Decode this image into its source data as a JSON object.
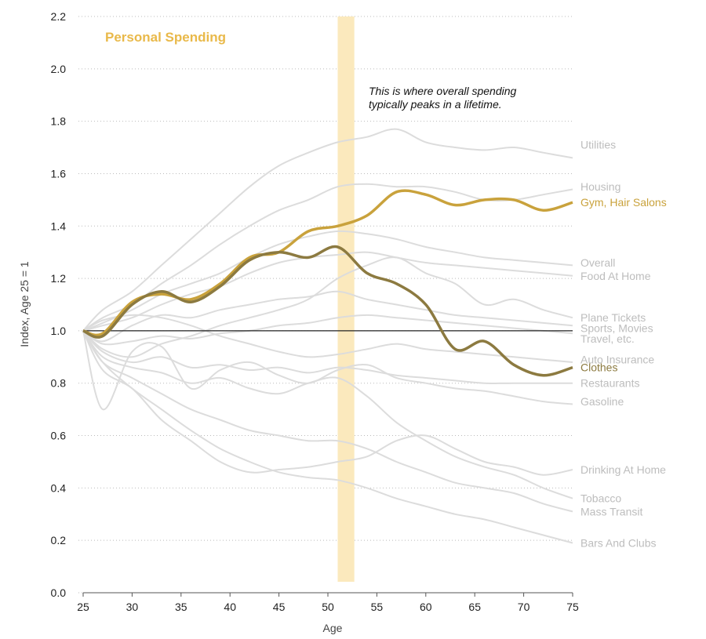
{
  "colors": {
    "background_series": "#dcdcdc",
    "background_label": "#bdbdbd",
    "highlight_gold": "#c9a23c",
    "highlight_dark": "#8c7a40",
    "title": "#e9b94a",
    "band": "#fbe9bd",
    "baseline": "#222222"
  },
  "chart_data": {
    "type": "line",
    "title": "Personal Spending",
    "xlabel": "Age",
    "ylabel": "Index, Age 25 = 1",
    "xlim": [
      25,
      75
    ],
    "ylim": [
      0,
      2.2
    ],
    "xticks": [
      25,
      30,
      35,
      40,
      45,
      50,
      55,
      60,
      65,
      70,
      75
    ],
    "yticks": [
      "0.0",
      "0.2",
      "0.4",
      "0.6",
      "0.8",
      "1.0",
      "1.2",
      "1.4",
      "1.6",
      "1.8",
      "2.0",
      "2.2"
    ],
    "grid": true,
    "baseline": 1.0,
    "peak_band": [
      51,
      52.7
    ],
    "annotation": {
      "lines": [
        "This is where overall spending",
        "typically peaks in a lifetime."
      ],
      "x": 54,
      "y": 1.9
    },
    "x": [
      25,
      27,
      30,
      33,
      36,
      39,
      42,
      45,
      48,
      51,
      54,
      57,
      60,
      63,
      66,
      69,
      72,
      75
    ],
    "series": [
      {
        "name": "Utilities",
        "highlight": false,
        "values": [
          1.0,
          1.08,
          1.15,
          1.25,
          1.35,
          1.45,
          1.55,
          1.63,
          1.68,
          1.72,
          1.74,
          1.77,
          1.72,
          1.7,
          1.69,
          1.7,
          1.68,
          1.66
        ]
      },
      {
        "name": "Housing",
        "highlight": false,
        "values": [
          1.0,
          1.05,
          1.1,
          1.18,
          1.25,
          1.33,
          1.4,
          1.46,
          1.5,
          1.55,
          1.56,
          1.55,
          1.55,
          1.53,
          1.5,
          1.5,
          1.52,
          1.54
        ]
      },
      {
        "name": "Gym, Hair Salons",
        "highlight": "gold",
        "values": [
          1.0,
          0.99,
          1.11,
          1.14,
          1.12,
          1.18,
          1.28,
          1.3,
          1.38,
          1.4,
          1.44,
          1.53,
          1.52,
          1.48,
          1.5,
          1.5,
          1.46,
          1.49
        ]
      },
      {
        "name": "Overall",
        "highlight": false,
        "values": [
          1.0,
          1.03,
          1.08,
          1.14,
          1.18,
          1.22,
          1.28,
          1.33,
          1.36,
          1.38,
          1.37,
          1.35,
          1.32,
          1.3,
          1.28,
          1.27,
          1.26,
          1.25
        ]
      },
      {
        "name": "Food At Home",
        "highlight": false,
        "values": [
          1.0,
          1.02,
          1.05,
          1.1,
          1.14,
          1.17,
          1.22,
          1.26,
          1.28,
          1.29,
          1.3,
          1.28,
          1.26,
          1.25,
          1.24,
          1.23,
          1.22,
          1.21
        ]
      },
      {
        "name": "Plane Tickets",
        "highlight": false,
        "values": [
          1.0,
          0.93,
          0.9,
          0.95,
          0.98,
          1.02,
          1.05,
          1.08,
          1.12,
          1.2,
          1.25,
          1.28,
          1.22,
          1.18,
          1.1,
          1.12,
          1.08,
          1.05
        ]
      },
      {
        "name": "Sports, Movies",
        "highlight": false,
        "values": [
          1.0,
          0.96,
          1.02,
          1.06,
          1.05,
          1.08,
          1.1,
          1.12,
          1.13,
          1.15,
          1.12,
          1.1,
          1.08,
          1.06,
          1.05,
          1.04,
          1.03,
          1.02
        ]
      },
      {
        "name": "Travel, etc.",
        "highlight": false,
        "values": [
          1.0,
          0.95,
          0.96,
          0.98,
          0.97,
          0.99,
          1.0,
          1.02,
          1.03,
          1.05,
          1.06,
          1.05,
          1.04,
          1.03,
          1.02,
          1.01,
          1.0,
          0.99
        ]
      },
      {
        "name": "Auto Insurance",
        "highlight": false,
        "values": [
          1.0,
          1.04,
          1.06,
          1.05,
          1.02,
          0.98,
          0.95,
          0.92,
          0.9,
          0.91,
          0.93,
          0.95,
          0.93,
          0.92,
          0.91,
          0.9,
          0.89,
          0.88
        ]
      },
      {
        "name": "Clothes",
        "highlight": "dark",
        "values": [
          1.0,
          0.98,
          1.1,
          1.15,
          1.11,
          1.17,
          1.27,
          1.3,
          1.28,
          1.32,
          1.22,
          1.18,
          1.1,
          0.93,
          0.96,
          0.87,
          0.83,
          0.86
        ]
      },
      {
        "name": "Restaurants",
        "highlight": false,
        "values": [
          1.0,
          0.92,
          0.88,
          0.9,
          0.86,
          0.87,
          0.85,
          0.86,
          0.84,
          0.86,
          0.85,
          0.83,
          0.82,
          0.81,
          0.8,
          0.8,
          0.8,
          0.8
        ]
      },
      {
        "name": "Gasoline",
        "highlight": false,
        "values": [
          1.0,
          0.7,
          0.92,
          0.94,
          0.78,
          0.85,
          0.88,
          0.83,
          0.8,
          0.85,
          0.87,
          0.82,
          0.8,
          0.78,
          0.77,
          0.75,
          0.73,
          0.72
        ]
      },
      {
        "name": "Drinking At Home",
        "highlight": false,
        "values": [
          1.0,
          0.85,
          0.78,
          0.66,
          0.58,
          0.5,
          0.46,
          0.47,
          0.48,
          0.5,
          0.52,
          0.58,
          0.6,
          0.55,
          0.5,
          0.48,
          0.45,
          0.47
        ]
      },
      {
        "name": "Tobacco",
        "highlight": false,
        "values": [
          1.0,
          0.9,
          0.86,
          0.84,
          0.8,
          0.82,
          0.78,
          0.76,
          0.8,
          0.82,
          0.75,
          0.65,
          0.58,
          0.52,
          0.48,
          0.45,
          0.4,
          0.36
        ]
      },
      {
        "name": "Mass Transit",
        "highlight": false,
        "values": [
          1.0,
          0.88,
          0.82,
          0.76,
          0.7,
          0.66,
          0.62,
          0.6,
          0.58,
          0.58,
          0.55,
          0.5,
          0.46,
          0.42,
          0.4,
          0.38,
          0.34,
          0.31
        ]
      },
      {
        "name": "Bars And Clubs",
        "highlight": false,
        "values": [
          1.0,
          0.88,
          0.78,
          0.7,
          0.62,
          0.55,
          0.5,
          0.46,
          0.44,
          0.43,
          0.4,
          0.36,
          0.33,
          0.3,
          0.28,
          0.25,
          0.22,
          0.19
        ]
      }
    ],
    "labels": [
      {
        "series": "Utilities",
        "text": "Utilities",
        "y": 1.71
      },
      {
        "series": "Housing",
        "text": "Housing",
        "y": 1.55
      },
      {
        "series": "Gym, Hair Salons",
        "text": "Gym, Hair Salons",
        "y": 1.49
      },
      {
        "series": "Overall",
        "text": "Overall",
        "y": 1.26
      },
      {
        "series": "Food At Home",
        "text": "Food At Home",
        "y": 1.21
      },
      {
        "series": "Plane Tickets",
        "text": "Plane Tickets",
        "y": 1.05
      },
      {
        "series": "Sports, Movies",
        "text": "Sports, Movies",
        "y": 1.01
      },
      {
        "series": "Travel, etc.",
        "text": "Travel, etc.",
        "y": 0.97
      },
      {
        "series": "Auto Insurance",
        "text": "Auto Insurance",
        "y": 0.89
      },
      {
        "series": "Clothes",
        "text": "Clothes",
        "y": 0.86
      },
      {
        "series": "Restaurants",
        "text": "Restaurants",
        "y": 0.8
      },
      {
        "series": "Gasoline",
        "text": "Gasoline",
        "y": 0.73
      },
      {
        "series": "Drinking At Home",
        "text": "Drinking At Home",
        "y": 0.47
      },
      {
        "series": "Tobacco",
        "text": "Tobacco",
        "y": 0.36
      },
      {
        "series": "Mass Transit",
        "text": "Mass Transit",
        "y": 0.31
      },
      {
        "series": "Bars And Clubs",
        "text": "Bars And Clubs",
        "y": 0.19
      }
    ]
  }
}
